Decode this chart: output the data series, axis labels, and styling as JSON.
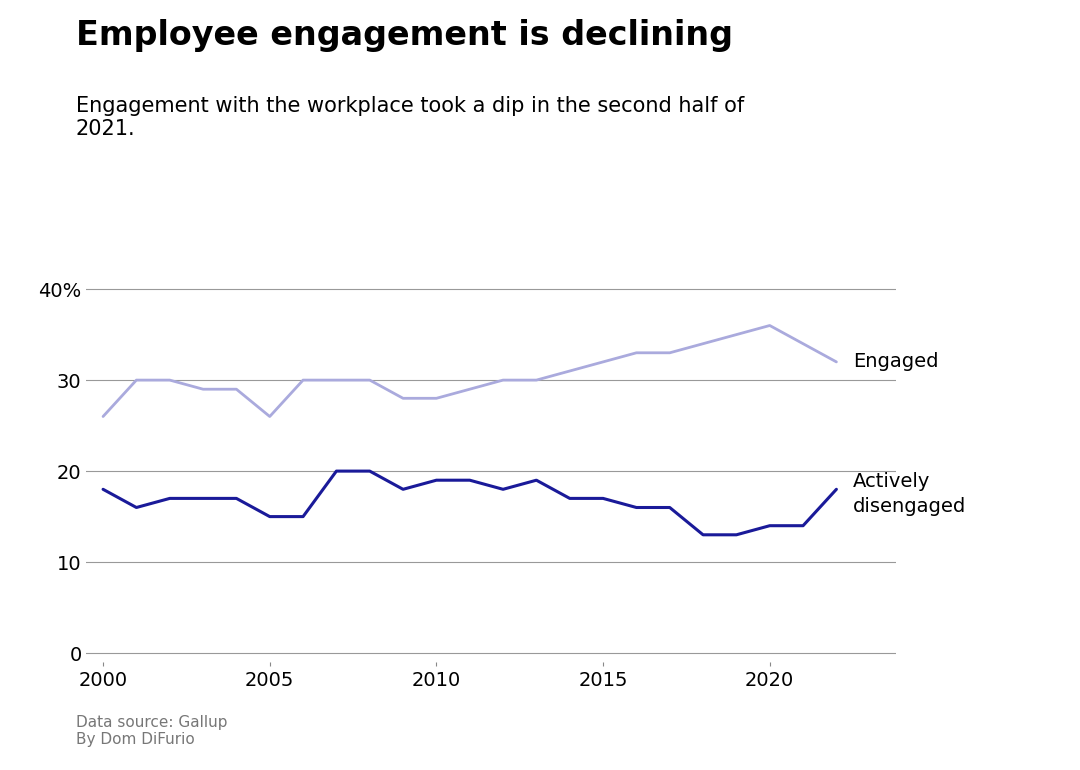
{
  "title": "Employee engagement is declining",
  "subtitle": "Engagement with the workplace took a dip in the second half of\n2021.",
  "footnote": "Data source: Gallup\nBy Dom DiFurio",
  "years_engaged": [
    2000,
    2001,
    2002,
    2003,
    2004,
    2005,
    2006,
    2007,
    2008,
    2009,
    2010,
    2011,
    2012,
    2013,
    2014,
    2015,
    2016,
    2017,
    2018,
    2019,
    2020,
    2021,
    2022
  ],
  "engaged": [
    26,
    30,
    30,
    29,
    29,
    26,
    30,
    30,
    30,
    28,
    28,
    29,
    30,
    30,
    31,
    32,
    33,
    33,
    34,
    35,
    36,
    34,
    32
  ],
  "years_disengaged": [
    2000,
    2001,
    2002,
    2003,
    2004,
    2005,
    2006,
    2007,
    2008,
    2009,
    2010,
    2011,
    2012,
    2013,
    2014,
    2015,
    2016,
    2017,
    2018,
    2019,
    2020,
    2021,
    2022
  ],
  "disengaged": [
    18,
    16,
    17,
    17,
    17,
    15,
    15,
    20,
    20,
    18,
    19,
    19,
    18,
    19,
    17,
    17,
    16,
    16,
    13,
    13,
    14,
    14,
    18
  ],
  "engaged_color": "#aaaadd",
  "disengaged_color": "#1a1a99",
  "background_color": "#ffffff",
  "grid_color": "#999999",
  "yticks": [
    0,
    10,
    20,
    30,
    40
  ],
  "ytick_labels": [
    "0",
    "10",
    "20",
    "30",
    "40%"
  ],
  "ylim": [
    -1,
    43
  ],
  "xlim": [
    1999.5,
    2023.8
  ],
  "xticks": [
    2000,
    2005,
    2010,
    2015,
    2020
  ],
  "title_fontsize": 24,
  "subtitle_fontsize": 15,
  "footnote_fontsize": 11,
  "label_fontsize": 14,
  "tick_fontsize": 14
}
